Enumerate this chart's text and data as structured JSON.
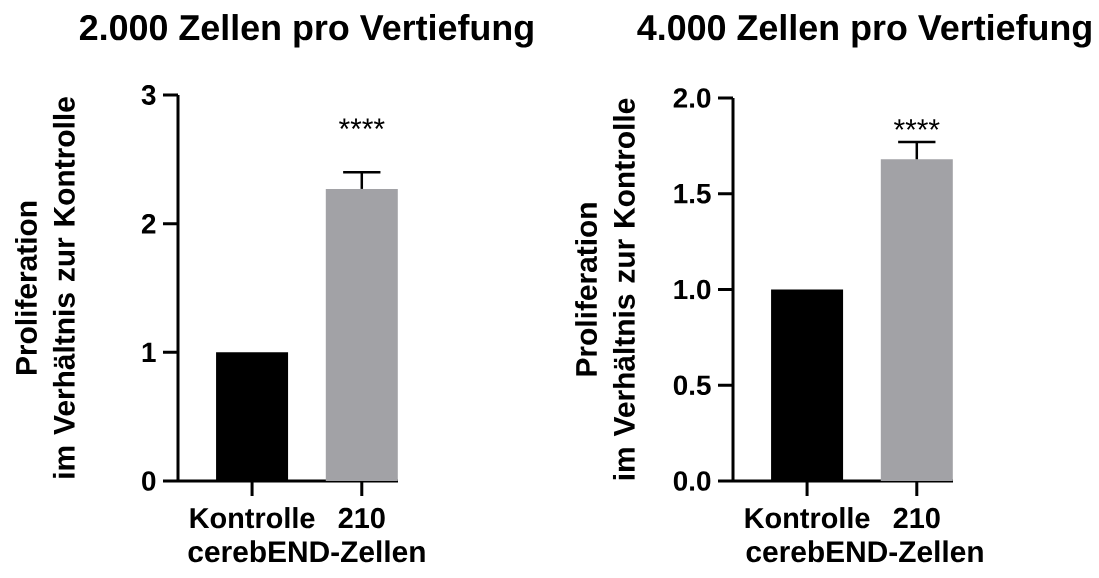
{
  "chart_data": [
    {
      "type": "bar",
      "title": "2.000 Zellen pro Vertiefung",
      "xlabel": "cerebEND-Zellen",
      "ylabel": "Proliferation im Verhältnis zur Kontrolle",
      "categories": [
        "Kontrolle",
        "210"
      ],
      "values": [
        1,
        2.27
      ],
      "colors": [
        "#000000",
        "#a2a2a6"
      ],
      "errors": [
        null,
        [
          2.27,
          2.4
        ]
      ],
      "ylim": [
        0,
        3
      ],
      "yticks": [
        0,
        1,
        2,
        3
      ],
      "annotations": [
        "****"
      ]
    },
    {
      "type": "bar",
      "title": "4.000 Zellen pro Vertiefung",
      "xlabel": "cerebEND-Zellen",
      "ylabel": "Proliferation im Verhältnis zur Kontrolle",
      "categories": [
        "Kontrolle",
        "210"
      ],
      "values": [
        1,
        1.68
      ],
      "colors": [
        "#000000",
        "#a2a2a6"
      ],
      "errors": [
        null,
        [
          1.68,
          1.77
        ]
      ],
      "ylim": [
        0,
        2
      ],
      "yticks": [
        {
          "value": 0,
          "label": "0.0"
        },
        0.5,
        {
          "value": 1,
          "label": "1.0"
        },
        1.5,
        {
          "value": 2,
          "label": "2.0"
        }
      ],
      "annotations": [
        "****"
      ]
    }
  ]
}
